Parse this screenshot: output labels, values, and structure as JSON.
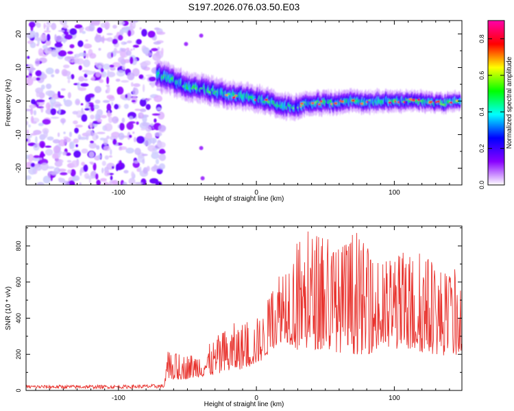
{
  "figure_title": "S197.2026.076.03.50.E03",
  "chart_data": [
    {
      "type": "heatmap",
      "title": "S197.2026.076.03.50.E03",
      "xlabel": "Height of straight line (km)",
      "ylabel": "Frequency (Hz)",
      "xlim": [
        -167,
        149
      ],
      "ylim": [
        -25,
        24
      ],
      "x_ticks": [
        -100,
        0,
        100
      ],
      "x_tick_labels": [
        "-100",
        "0",
        "100"
      ],
      "y_ticks": [
        -20,
        -10,
        0,
        10,
        20
      ],
      "y_tick_labels": [
        "-20",
        "-10",
        "0",
        "10",
        "20"
      ],
      "noise_region_x": [
        -167,
        -72
      ],
      "isolated_blobs": [
        [
          -40,
          19.5
        ],
        [
          -51,
          17
        ],
        [
          -40,
          -14
        ],
        [
          -39,
          -23
        ]
      ],
      "ridge_x": [
        -72,
        -62,
        -52,
        -42,
        -32,
        -22,
        -12,
        -2,
        8,
        18,
        28,
        38,
        48,
        58,
        68,
        78,
        88,
        98,
        108,
        118,
        128,
        138,
        148
      ],
      "ridge_freq": [
        8,
        6.5,
        4.5,
        4,
        3,
        2,
        1.5,
        1,
        0,
        -1.5,
        -1.7,
        -0.5,
        -0.5,
        -0.5,
        0,
        -0.5,
        0,
        0,
        0,
        0,
        -0.5,
        -0.5,
        0
      ],
      "colorbar": {
        "label": "Normalized spectral amplitude",
        "range": [
          0,
          0.9
        ],
        "ticks": [
          0,
          0.2,
          0.4,
          0.6,
          0.8
        ],
        "tick_labels": [
          "0.0",
          "0.2",
          "0.4",
          "0.6",
          "0.8"
        ],
        "colors": [
          "#ffffff",
          "#8800ff",
          "#0000ff",
          "#00ffff",
          "#00ff00",
          "#ffff00",
          "#ff0000",
          "#ff00aa"
        ]
      }
    },
    {
      "type": "line",
      "xlabel": "Height of straight line (km)",
      "ylabel": "SNR (10 * v/v)",
      "xlim": [
        -167,
        149
      ],
      "ylim": [
        0,
        910
      ],
      "x_ticks": [
        -100,
        0,
        100
      ],
      "x_tick_labels": [
        "-100",
        "0",
        "100"
      ],
      "y_ticks": [
        0,
        200,
        400,
        600,
        800
      ],
      "y_tick_labels": [
        "0",
        "200",
        "400",
        "600",
        "800"
      ],
      "series": [
        {
          "name": "SNR",
          "color": "#e8322d",
          "envelope": {
            "x": [
              -167,
              -100,
              -67,
              -64,
              -55,
              -45,
              -35,
              -25,
              -15,
              -5,
              5,
              12,
              20,
              30,
              40,
              50,
              60,
              70,
              80,
              90,
              100,
              110,
              120,
              130,
              140,
              149
            ],
            "low": [
              10,
              10,
              12,
              60,
              60,
              70,
              80,
              90,
              110,
              130,
              170,
              230,
              280,
              220,
              230,
              220,
              210,
              200,
              200,
              220,
              230,
              220,
              210,
              200,
              190,
              200
            ],
            "high": [
              30,
              30,
              35,
              220,
              200,
              210,
              250,
              330,
              380,
              380,
              430,
              600,
              780,
              860,
              890,
              900,
              800,
              900,
              800,
              700,
              780,
              760,
              790,
              720,
              650,
              700
            ]
          }
        }
      ]
    }
  ]
}
